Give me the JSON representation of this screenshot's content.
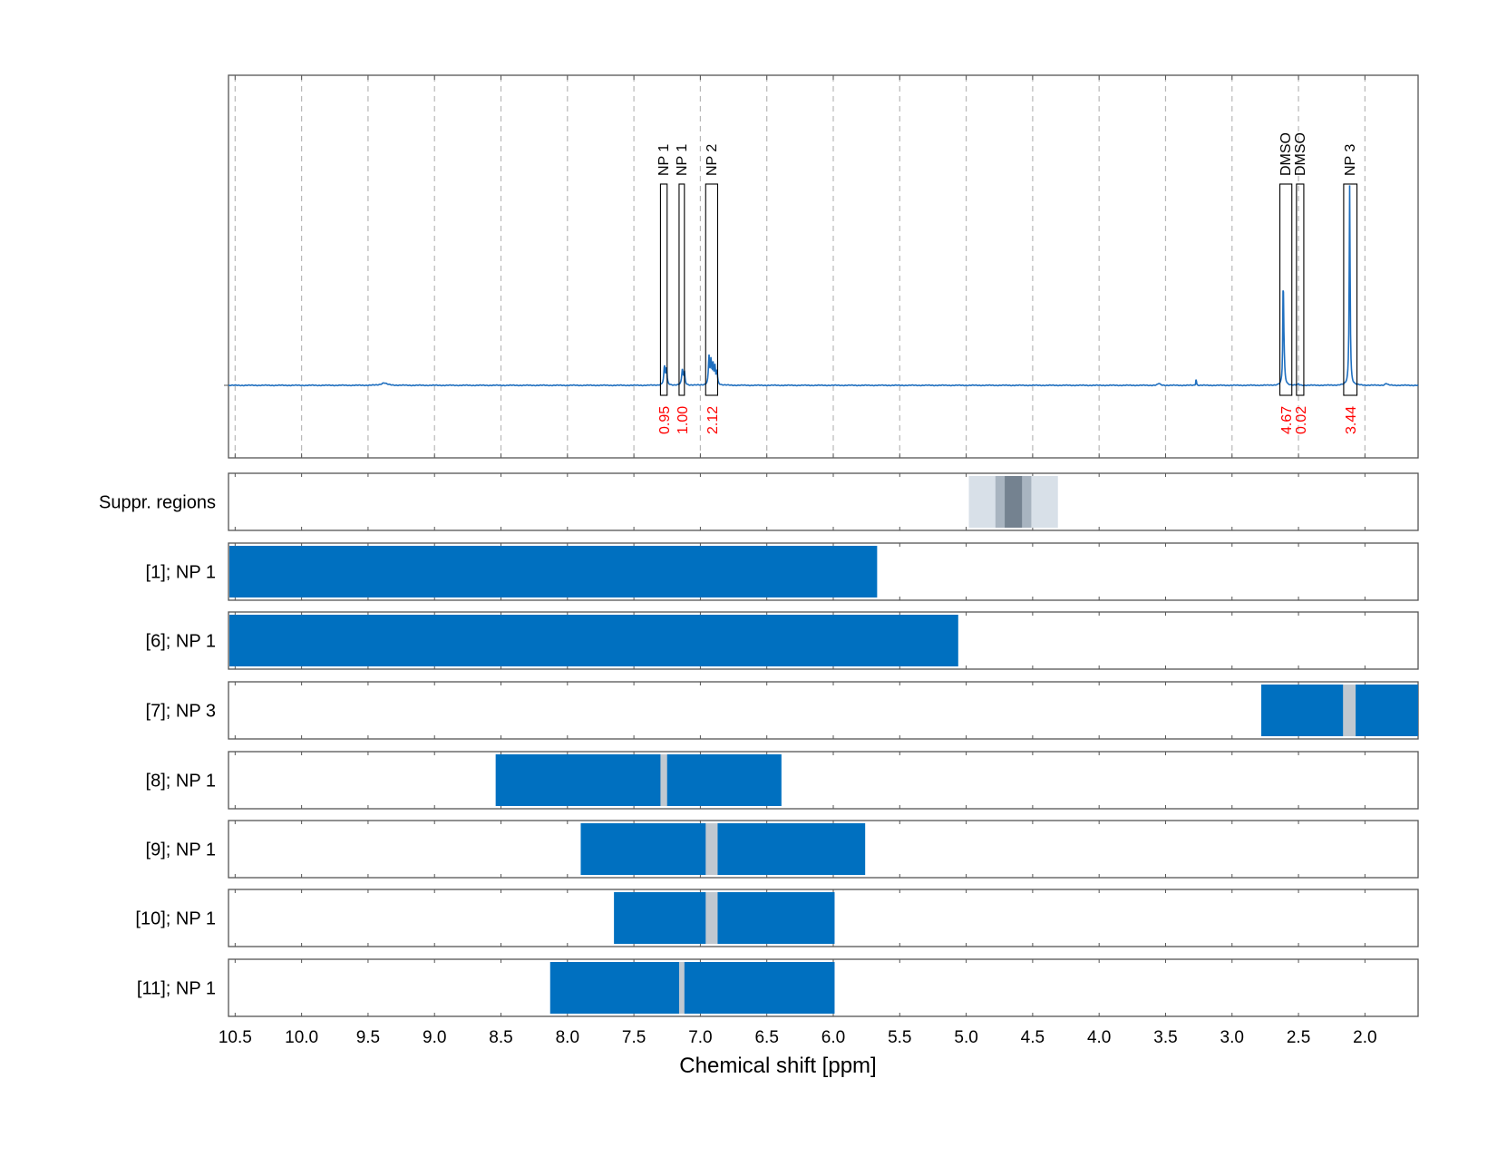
{
  "chart_data": {
    "type": "line",
    "xlabel": "Chemical shift [ppm]",
    "x_axis": {
      "range": [
        10.55,
        1.6
      ],
      "reversed": true,
      "ticks": [
        10.5,
        10.0,
        9.5,
        9.0,
        8.5,
        8.0,
        7.5,
        7.0,
        6.5,
        6.0,
        5.5,
        5.0,
        4.5,
        4.0,
        3.5,
        3.0,
        2.5,
        2.0
      ],
      "tick_labels": [
        "10.5",
        "10.0",
        "9.5",
        "9.0",
        "8.5",
        "8.0",
        "7.5",
        "7.0",
        "6.5",
        "6.0",
        "5.5",
        "5.0",
        "4.5",
        "4.0",
        "3.5",
        "3.0",
        "2.5",
        "2.0"
      ]
    },
    "grid": true,
    "colors": {
      "spectrum": "#1f6fbf",
      "bar": "#0070c0",
      "gap": "#c0c8d0",
      "integral_text": "#ff0000",
      "suppr_light": "#d8e0e8",
      "suppr_mid": "#a8b4c0",
      "suppr_dark": "#748290"
    },
    "spectrum": {
      "baseline": 0.0,
      "peaks": [
        {
          "x": 9.38,
          "height": 0.008,
          "width": 0.05
        },
        {
          "x": 7.27,
          "height": 0.06,
          "width": 0.012
        },
        {
          "x": 7.255,
          "height": 0.05,
          "width": 0.01
        },
        {
          "x": 7.135,
          "height": 0.05,
          "width": 0.012
        },
        {
          "x": 7.12,
          "height": 0.04,
          "width": 0.01
        },
        {
          "x": 6.935,
          "height": 0.09,
          "width": 0.01
        },
        {
          "x": 6.92,
          "height": 0.075,
          "width": 0.01
        },
        {
          "x": 6.905,
          "height": 0.065,
          "width": 0.01
        },
        {
          "x": 6.89,
          "height": 0.055,
          "width": 0.01
        },
        {
          "x": 6.875,
          "height": 0.045,
          "width": 0.01
        },
        {
          "x": 3.55,
          "height": 0.006,
          "width": 0.02
        },
        {
          "x": 3.27,
          "height": 0.025,
          "width": 0.005
        },
        {
          "x": 2.615,
          "height": 0.32,
          "width": 0.006
        },
        {
          "x": 2.61,
          "height": 0.1,
          "width": 0.012
        },
        {
          "x": 2.5,
          "height": 0.004,
          "width": 0.01
        },
        {
          "x": 2.115,
          "height": 0.65,
          "width": 0.008
        },
        {
          "x": 1.84,
          "height": 0.006,
          "width": 0.02
        }
      ]
    },
    "annotations": [
      {
        "label": "NP 1",
        "range": [
          7.3,
          7.25
        ],
        "integral": "0.95"
      },
      {
        "label": "NP 1",
        "range": [
          7.16,
          7.12
        ],
        "integral": "1.00"
      },
      {
        "label": "NP 2",
        "range": [
          6.96,
          6.87
        ],
        "integral": "2.12"
      },
      {
        "label": "DMSO",
        "range": [
          2.64,
          2.55
        ],
        "integral": "4.67"
      },
      {
        "label": "DMSO",
        "range": [
          2.515,
          2.46
        ],
        "integral": "0.02"
      },
      {
        "label": "NP 3",
        "range": [
          2.16,
          2.06
        ],
        "integral": "3.44"
      }
    ],
    "suppression_regions": [
      {
        "range": [
          4.98,
          4.31
        ],
        "shade": "light"
      },
      {
        "range": [
          4.78,
          4.51
        ],
        "shade": "mid"
      },
      {
        "range": [
          4.71,
          4.58
        ],
        "shade": "dark"
      }
    ],
    "rows": [
      {
        "label": "Suppr. regions",
        "kind": "suppression",
        "segments": []
      },
      {
        "label": "[1]; NP 1",
        "kind": "bar",
        "segments": [
          [
            10.55,
            5.67
          ]
        ],
        "gaps": []
      },
      {
        "label": "[6]; NP 1",
        "kind": "bar",
        "segments": [
          [
            10.55,
            5.06
          ]
        ],
        "gaps": []
      },
      {
        "label": "[7]; NP 3",
        "kind": "bar",
        "segments": [
          [
            2.78,
            1.6
          ]
        ],
        "gaps": [
          [
            2.165,
            2.07
          ]
        ]
      },
      {
        "label": "[8]; NP 1",
        "kind": "bar",
        "segments": [
          [
            8.54,
            6.39
          ]
        ],
        "gaps": [
          [
            7.3,
            7.25
          ]
        ]
      },
      {
        "label": "[9]; NP 1",
        "kind": "bar",
        "segments": [
          [
            7.9,
            5.76
          ]
        ],
        "gaps": [
          [
            6.96,
            6.87
          ]
        ]
      },
      {
        "label": "[10]; NP 1",
        "kind": "bar",
        "segments": [
          [
            7.65,
            5.99
          ]
        ],
        "gaps": [
          [
            6.96,
            6.87
          ]
        ]
      },
      {
        "label": "[11]; NP 1",
        "kind": "bar",
        "segments": [
          [
            8.13,
            5.99
          ]
        ],
        "gaps": [
          [
            7.16,
            7.12
          ]
        ]
      }
    ]
  }
}
